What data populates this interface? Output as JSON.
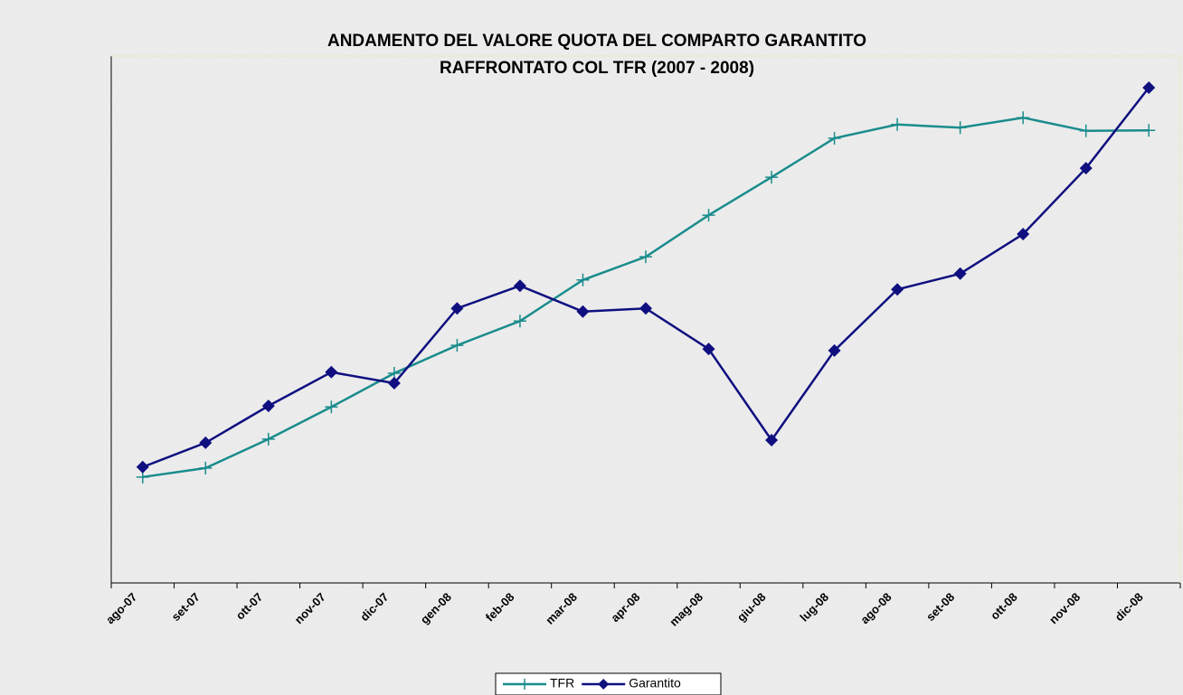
{
  "chart_data": {
    "type": "line",
    "title": [
      "ANDAMENTO DEL VALORE QUOTA DEL COMPARTO GARANTITO",
      "RAFFRONTATO COL TFR (2007 - 2008)"
    ],
    "categories": [
      "ago-07",
      "set-07",
      "ott-07",
      "nov-07",
      "dic-07",
      "gen-08",
      "feb-08",
      "mar-08",
      "apr-08",
      "mag-08",
      "giu-08",
      "lug-08",
      "ago-08",
      "set-08",
      "ott-08",
      "nov-08",
      "dic-08"
    ],
    "ylim": [
      0,
      100
    ],
    "legend": "bottom",
    "series": [
      {
        "name": "TFR",
        "color": "#1a8c8c",
        "marker": "plus",
        "values": [
          20.1,
          21.8,
          27.3,
          33.4,
          39.8,
          45.1,
          49.7,
          57.5,
          61.9,
          69.8,
          77.0,
          84.4,
          87.0,
          86.4,
          88.3,
          85.8,
          85.9
        ]
      },
      {
        "name": "Garantito",
        "color": "#0f0f80",
        "marker": "diamond",
        "values": [
          22.0,
          26.6,
          33.6,
          40.0,
          37.9,
          52.1,
          56.4,
          51.5,
          52.1,
          44.4,
          27.1,
          44.1,
          55.7,
          58.7,
          66.2,
          78.7,
          94.0
        ]
      }
    ]
  }
}
